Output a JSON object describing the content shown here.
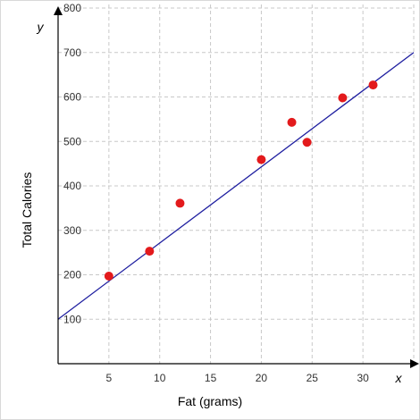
{
  "chart_data": {
    "type": "scatter",
    "xlabel": "Fat (grams)",
    "ylabel": "Total Calories",
    "x_axis_var": "x",
    "y_axis_var": "y",
    "xlim": [
      0,
      35
    ],
    "ylim": [
      0,
      800
    ],
    "x_ticks": [
      5,
      10,
      15,
      20,
      25,
      30
    ],
    "y_ticks": [
      100,
      200,
      300,
      400,
      500,
      600,
      700,
      800
    ],
    "grid": true,
    "points": [
      {
        "x": 5,
        "y": 197
      },
      {
        "x": 9,
        "y": 253
      },
      {
        "x": 12,
        "y": 361
      },
      {
        "x": 20,
        "y": 459
      },
      {
        "x": 23,
        "y": 543
      },
      {
        "x": 24.5,
        "y": 498
      },
      {
        "x": 28,
        "y": 598
      },
      {
        "x": 31,
        "y": 627
      }
    ],
    "trend_line": {
      "x": [
        0,
        35
      ],
      "y": [
        100,
        700
      ]
    },
    "colors": {
      "points": "#e31a1c",
      "trend_line": "#1f1fa0",
      "grid": "#c8c8c8",
      "axes": "#000000"
    }
  }
}
